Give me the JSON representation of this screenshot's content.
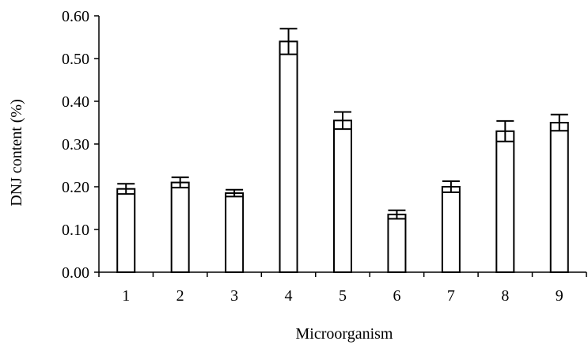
{
  "chart_data": {
    "type": "bar",
    "title": "",
    "xlabel": "Microorganism",
    "ylabel": "DNJ content (%)",
    "categories": [
      "1",
      "2",
      "3",
      "4",
      "5",
      "6",
      "7",
      "8",
      "9"
    ],
    "values": [
      0.195,
      0.21,
      0.185,
      0.54,
      0.355,
      0.135,
      0.2,
      0.33,
      0.35
    ],
    "error": [
      0.012,
      0.012,
      0.008,
      0.03,
      0.02,
      0.01,
      0.013,
      0.024,
      0.019
    ],
    "ylim": [
      0,
      0.6
    ],
    "y_ticks": [
      "0.00",
      "0.10",
      "0.20",
      "0.30",
      "0.40",
      "0.50",
      "0.60"
    ],
    "grid": false,
    "legend": "none",
    "colors": {
      "bar_fill": "#ffffff",
      "bar_stroke": "#000000",
      "axis": "#000000"
    }
  }
}
